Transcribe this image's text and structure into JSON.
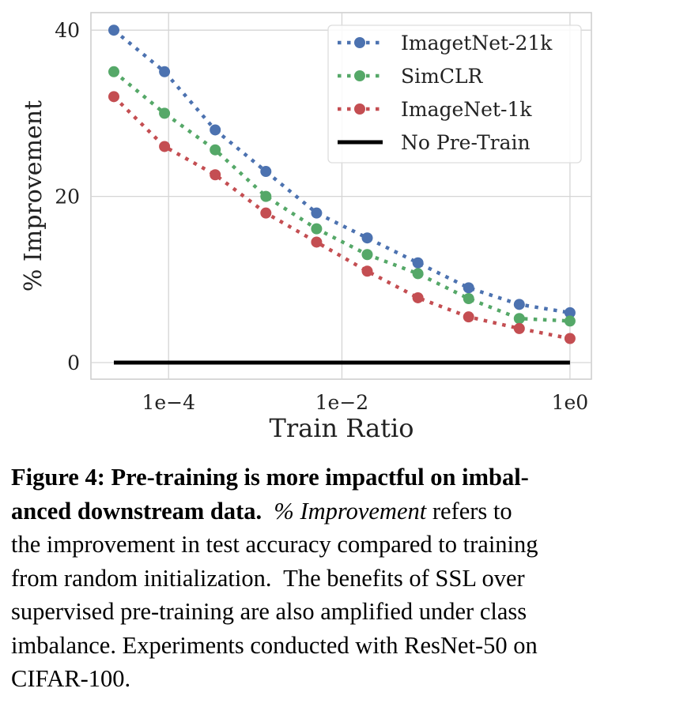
{
  "chart_data": {
    "type": "line",
    "xlabel": "Train Ratio",
    "ylabel": "% Improvement",
    "x_scale": "log",
    "point_index": [
      0,
      1,
      2,
      3,
      4,
      5,
      6,
      7,
      8,
      9
    ],
    "x_ticks": [
      {
        "label": "1e−4",
        "at_index": 1.08
      },
      {
        "label": "1e−2",
        "at_index": 4.5
      },
      {
        "label": "1e0",
        "at_index": 9
      }
    ],
    "y_ticks": [
      0,
      20,
      40
    ],
    "ylim": [
      -1,
      42
    ],
    "grid": true,
    "legend_placement": "top-right",
    "series": [
      {
        "name": "ImagetNet-21k",
        "color": "#4c72b0",
        "style": "dotted-marker",
        "values": [
          40,
          35,
          28,
          23,
          18,
          15,
          12,
          9,
          7,
          6
        ]
      },
      {
        "name": "SimCLR",
        "color": "#55a868",
        "style": "dotted-marker",
        "values": [
          35,
          30,
          25.6,
          20,
          16.1,
          13,
          10.7,
          7.7,
          5.3,
          5.0
        ]
      },
      {
        "name": "ImageNet-1k",
        "color": "#c44e52",
        "style": "dotted-marker",
        "values": [
          32,
          26,
          22.6,
          18,
          14.5,
          11,
          7.8,
          5.5,
          4.1,
          2.9
        ]
      },
      {
        "name": "No Pre-Train",
        "color": "#000000",
        "style": "solid",
        "values": [
          0,
          0,
          0,
          0,
          0,
          0,
          0,
          0,
          0,
          0
        ]
      }
    ]
  },
  "caption": {
    "lines": [
      {
        "bold": "Figure 4: Pre-training is more impactful on imbal-"
      },
      {
        "bold": "anced downstream data.",
        "text": "  ",
        "italic": "% Improvement",
        "text2": " refers to"
      },
      {
        "text": "the improvement in test accuracy compared to training"
      },
      {
        "text": "from random initialization.  The benefits of SSL over"
      },
      {
        "text": "supervised pre-training are also amplified under class"
      },
      {
        "text": "imbalance. Experiments conducted with ResNet-50 on"
      },
      {
        "text": "CIFAR-100."
      }
    ]
  }
}
